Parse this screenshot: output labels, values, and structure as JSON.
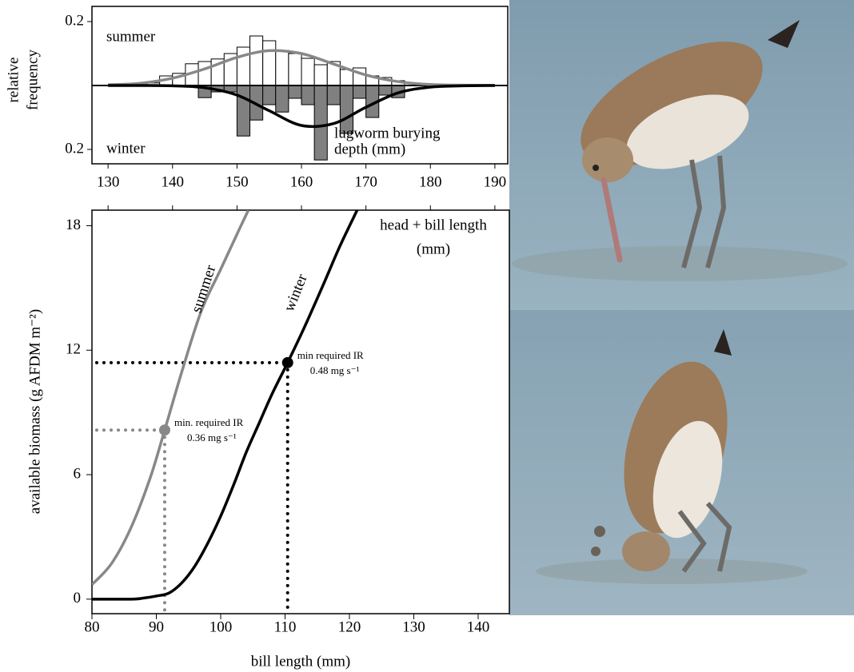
{
  "chart_data": [
    {
      "type": "histogram",
      "xlim": [
        127.5,
        192
      ],
      "xticks": [
        130,
        140,
        150,
        160,
        170,
        180,
        190
      ],
      "ylim": [
        -0.245,
        0.2475
      ],
      "yticks": [
        0.2,
        {
          "value": -0.2,
          "label": "0.2"
        }
      ],
      "ylabel": [
        "relative",
        "frequency"
      ],
      "xlabel": [
        "head + bill length",
        "(mm)"
      ],
      "annotation": [
        "lugworm burying",
        "depth (mm)"
      ],
      "series": [
        {
          "name": "summer",
          "color": "#ffffff",
          "bins": [
            136,
            138,
            140,
            142,
            144,
            146,
            148,
            150,
            152,
            154,
            156,
            158,
            160,
            162,
            164,
            166,
            168,
            170,
            172,
            174,
            176,
            178
          ],
          "values": [
            0.008,
            0.03,
            0.038,
            0.068,
            0.075,
            0.083,
            0.1,
            0.12,
            0.155,
            0.14,
            0.11,
            0.1,
            0.085,
            0.065,
            0.075,
            0.05,
            0.055,
            0.03,
            0.025,
            0.015,
            0.008
          ]
        },
        {
          "name": "winter",
          "color": "#808080",
          "bins": [
            144,
            146,
            148,
            150,
            152,
            154,
            156,
            158,
            160,
            162,
            164,
            166,
            168,
            170,
            172,
            174,
            176
          ],
          "values": [
            -0.038,
            -0.02,
            -0.02,
            -0.158,
            -0.108,
            -0.06,
            -0.083,
            -0.04,
            -0.06,
            -0.233,
            -0.06,
            -0.15,
            -0.04,
            -0.1,
            -0.03,
            -0.038
          ]
        }
      ],
      "lines": [
        {
          "color": "#888888",
          "x": [
            130,
            135,
            140,
            145,
            150,
            155,
            160,
            165,
            170,
            175,
            180,
            185,
            190
          ],
          "values": [
            0.002,
            0.007,
            0.023,
            0.052,
            0.088,
            0.109,
            0.1,
            0.067,
            0.033,
            0.012,
            0.003,
            0.001,
            0
          ]
        },
        {
          "color": "#000000",
          "x": [
            130,
            135,
            140,
            145,
            150,
            155,
            160,
            165,
            170,
            175,
            180,
            185,
            190
          ],
          "values": [
            0,
            0,
            -0.001,
            -0.007,
            -0.03,
            -0.079,
            -0.125,
            -0.119,
            -0.068,
            -0.023,
            -0.005,
            -0.001,
            0
          ]
        }
      ]
    },
    {
      "type": "line",
      "xlim": [
        80,
        144.85
      ],
      "xticks": [
        80,
        90,
        100,
        110,
        120,
        130,
        140
      ],
      "ylim": [
        -0.7,
        18.75
      ],
      "yticks": [
        0,
        6,
        12,
        18
      ],
      "xlabel": "bill length (mm)",
      "ylabel": "available  biomass (g AFDM m⁻²)",
      "series": [
        {
          "name": "summer",
          "color": "#888888",
          "x": [
            80,
            83,
            86,
            89,
            91.3,
            94,
            97,
            100,
            103,
            104.3
          ],
          "values": [
            0.7,
            1.7,
            3.4,
            5.8,
            8.15,
            11,
            13.9,
            15.9,
            17.9,
            18.75
          ]
        },
        {
          "name": "winter",
          "color": "#000000",
          "x": [
            80,
            86,
            88,
            90,
            92,
            94,
            96,
            98,
            100,
            102,
            104,
            106,
            108,
            110.4,
            113,
            116,
            118.5,
            121.2
          ],
          "values": [
            0,
            0,
            0.05,
            0.15,
            0.3,
            0.8,
            1.6,
            2.7,
            4,
            5.5,
            7.1,
            8.5,
            9.9,
            11.4,
            13.1,
            15.2,
            17,
            18.75
          ]
        }
      ],
      "points": [
        {
          "x": 91.3,
          "y": 8.15,
          "color": "#888888",
          "label": [
            "min. required IR",
            "0.36 mg s⁻¹"
          ]
        },
        {
          "x": 110.4,
          "y": 11.4,
          "color": "#000000",
          "label": [
            "min required IR",
            "0.48 mg s⁻¹"
          ]
        }
      ]
    }
  ]
}
